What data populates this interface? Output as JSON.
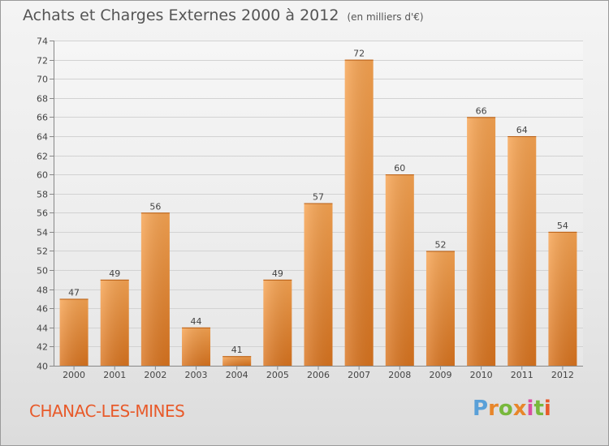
{
  "header": {
    "title": "Achats et Charges Externes 2000 à 2012",
    "unit": "(en milliers d'€)"
  },
  "footer": {
    "city": "CHANAC-LES-MINES",
    "logo": "Proxiti"
  },
  "colors": {
    "bar_light": "#f7a452",
    "bar_dark": "#d9741f",
    "city": "#e85a2a",
    "logo_letters": [
      "#5aa0d8",
      "#e8862a",
      "#78b83c",
      "#e8862a",
      "#d94fa0",
      "#78b83c",
      "#e85a2a"
    ]
  },
  "chart_data": {
    "type": "bar",
    "title": "Achats et Charges Externes 2000 à 2012",
    "subtitle": "(en milliers d'€)",
    "xlabel": "",
    "ylabel": "",
    "categories": [
      "2000",
      "2001",
      "2002",
      "2003",
      "2004",
      "2005",
      "2006",
      "2007",
      "2008",
      "2009",
      "2010",
      "2011",
      "2012"
    ],
    "values": [
      47,
      49,
      56,
      44,
      41,
      49,
      57,
      72,
      60,
      52,
      66,
      64,
      54
    ],
    "ylim": [
      40,
      74
    ],
    "yticks": [
      40,
      42,
      44,
      46,
      48,
      50,
      52,
      54,
      56,
      58,
      60,
      62,
      64,
      66,
      68,
      70,
      72,
      74
    ],
    "grid": true,
    "legend": "none"
  }
}
